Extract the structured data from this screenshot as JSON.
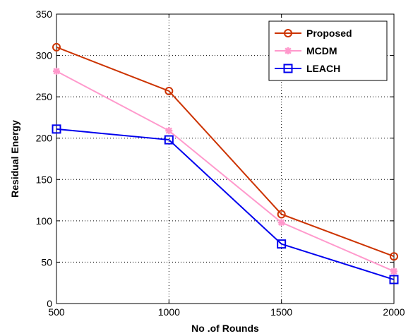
{
  "chart_data": {
    "type": "line",
    "x": [
      500,
      1000,
      1500,
      2000
    ],
    "xlabel": "No .of Rounds",
    "ylabel": "Residual Energy",
    "xlim": [
      500,
      2000
    ],
    "ylim": [
      0,
      350
    ],
    "xticks": [
      "500",
      "1000",
      "1500",
      "2000"
    ],
    "yticks": [
      "0",
      "50",
      "100",
      "150",
      "200",
      "250",
      "300",
      "350"
    ],
    "grid": true,
    "legend_position": "top-right",
    "series": [
      {
        "name": "Proposed",
        "values": [
          310,
          257,
          108,
          57
        ],
        "color": "#cc3300",
        "marker": "circle"
      },
      {
        "name": "MCDM",
        "values": [
          281,
          209,
          98,
          39
        ],
        "color": "#ff99cc",
        "marker": "star"
      },
      {
        "name": "LEACH",
        "values": [
          211,
          198,
          72,
          29
        ],
        "color": "#0000ee",
        "marker": "square"
      }
    ]
  }
}
